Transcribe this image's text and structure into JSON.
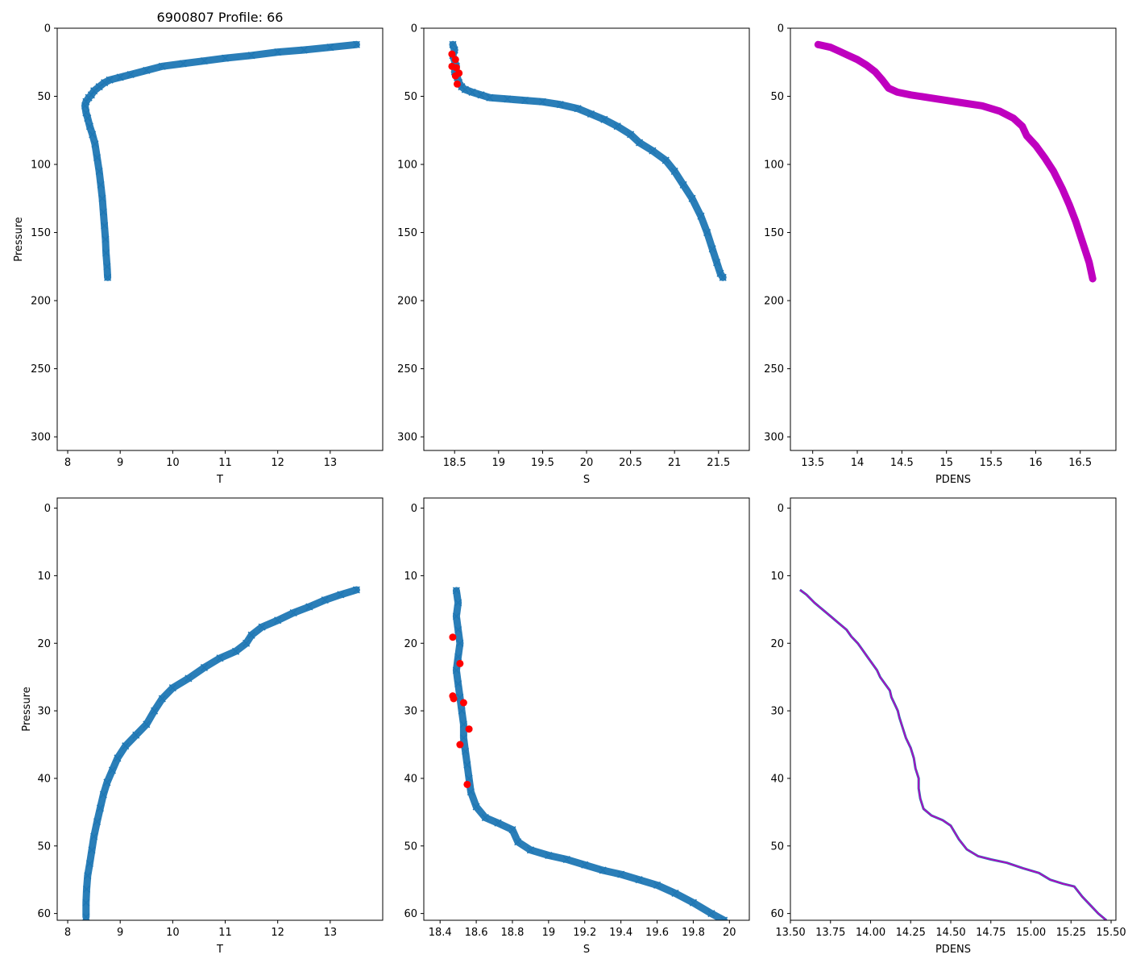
{
  "figure_title": "6900807 Profile: 66",
  "colors": {
    "series": "#1f77b4",
    "flag": "#ff0000",
    "density": "#bf00bf"
  },
  "chart_data": [
    {
      "id": "top-t",
      "type": "scatter",
      "title": "6900807 Profile: 66",
      "xlabel": "T",
      "ylabel": "Pressure",
      "xlim": [
        7.8,
        14.0
      ],
      "ylim": [
        310,
        0
      ],
      "xticks": [
        8,
        9,
        10,
        11,
        12,
        13
      ],
      "yticks": [
        0,
        50,
        100,
        150,
        200,
        250,
        300
      ],
      "marker": "x",
      "series": [
        {
          "name": "T",
          "color": "#1f77b4",
          "points": [
            [
              13.5,
              12
            ],
            [
              13.0,
              14
            ],
            [
              12.5,
              16
            ],
            [
              12.0,
              17.5
            ],
            [
              11.5,
              20
            ],
            [
              11.0,
              22
            ],
            [
              10.6,
              24
            ],
            [
              10.2,
              26
            ],
            [
              9.8,
              28
            ],
            [
              9.5,
              31
            ],
            [
              9.2,
              34
            ],
            [
              9.0,
              36
            ],
            [
              8.8,
              38
            ],
            [
              8.7,
              40
            ],
            [
              8.6,
              43
            ],
            [
              8.5,
              46
            ],
            [
              8.45,
              49
            ],
            [
              8.4,
              51
            ],
            [
              8.35,
              54
            ],
            [
              8.33,
              57
            ],
            [
              8.35,
              62
            ],
            [
              8.38,
              66
            ],
            [
              8.42,
              72
            ],
            [
              8.47,
              78
            ],
            [
              8.52,
              85
            ],
            [
              8.56,
              95
            ],
            [
              8.6,
              105
            ],
            [
              8.63,
              115
            ],
            [
              8.66,
              125
            ],
            [
              8.68,
              135
            ],
            [
              8.7,
              145
            ],
            [
              8.72,
              155
            ],
            [
              8.73,
              165
            ],
            [
              8.75,
              175
            ],
            [
              8.76,
              183
            ]
          ]
        }
      ]
    },
    {
      "id": "top-s",
      "type": "scatter",
      "title": "",
      "xlabel": "S",
      "ylabel": "",
      "xlim": [
        18.15,
        21.85
      ],
      "ylim": [
        310,
        0
      ],
      "xticks": [
        18.5,
        19.0,
        19.5,
        20.0,
        20.5,
        21.0,
        21.5
      ],
      "yticks": [
        0,
        50,
        100,
        150,
        200,
        250,
        300
      ],
      "marker": "x",
      "series": [
        {
          "name": "S",
          "color": "#1f77b4",
          "points": [
            [
              18.48,
              12
            ],
            [
              18.5,
              16
            ],
            [
              18.48,
              20
            ],
            [
              18.5,
              24
            ],
            [
              18.52,
              28
            ],
            [
              18.5,
              32
            ],
            [
              18.53,
              36
            ],
            [
              18.55,
              40
            ],
            [
              18.58,
              43
            ],
            [
              18.62,
              45
            ],
            [
              18.7,
              47
            ],
            [
              18.8,
              49
            ],
            [
              18.9,
              51
            ],
            [
              19.1,
              52
            ],
            [
              19.3,
              53
            ],
            [
              19.5,
              54
            ],
            [
              19.7,
              56
            ],
            [
              19.9,
              59
            ],
            [
              20.05,
              63
            ],
            [
              20.2,
              67
            ],
            [
              20.35,
              72
            ],
            [
              20.5,
              78
            ],
            [
              20.6,
              84
            ],
            [
              20.75,
              90
            ],
            [
              20.9,
              97
            ],
            [
              21.0,
              105
            ],
            [
              21.1,
              115
            ],
            [
              21.2,
              125
            ],
            [
              21.3,
              138
            ],
            [
              21.37,
              150
            ],
            [
              21.43,
              162
            ],
            [
              21.48,
              172
            ],
            [
              21.52,
              180
            ],
            [
              21.55,
              183
            ]
          ]
        },
        {
          "name": "flagged",
          "color": "#ff0000",
          "marker": "o",
          "points": [
            [
              18.47,
              19
            ],
            [
              18.51,
              23
            ],
            [
              18.47,
              28
            ],
            [
              18.52,
              29
            ],
            [
              18.55,
              33
            ],
            [
              18.51,
              35
            ],
            [
              18.53,
              41
            ]
          ]
        }
      ]
    },
    {
      "id": "top-pdens",
      "type": "scatter",
      "title": "",
      "xlabel": "PDENS",
      "ylabel": "",
      "xlim": [
        13.25,
        16.9
      ],
      "ylim": [
        310,
        0
      ],
      "xticks": [
        13.5,
        14.0,
        14.5,
        15.0,
        15.5,
        16.0,
        16.5
      ],
      "yticks": [
        0,
        50,
        100,
        150,
        200,
        250,
        300
      ],
      "marker": "line",
      "series": [
        {
          "name": "PDENS",
          "color": "#bf00bf",
          "points": [
            [
              13.56,
              12
            ],
            [
              13.7,
              14
            ],
            [
              13.8,
              17
            ],
            [
              13.9,
              20
            ],
            [
              14.0,
              23
            ],
            [
              14.1,
              27
            ],
            [
              14.2,
              32
            ],
            [
              14.28,
              38
            ],
            [
              14.35,
              44
            ],
            [
              14.45,
              47
            ],
            [
              14.6,
              49
            ],
            [
              14.8,
              51
            ],
            [
              15.0,
              53
            ],
            [
              15.2,
              55
            ],
            [
              15.4,
              57
            ],
            [
              15.6,
              61
            ],
            [
              15.75,
              66
            ],
            [
              15.85,
              72
            ],
            [
              15.9,
              79
            ],
            [
              16.0,
              86
            ],
            [
              16.1,
              95
            ],
            [
              16.2,
              105
            ],
            [
              16.3,
              118
            ],
            [
              16.38,
              130
            ],
            [
              16.45,
              142
            ],
            [
              16.5,
              152
            ],
            [
              16.55,
              162
            ],
            [
              16.6,
              172
            ],
            [
              16.64,
              184
            ]
          ]
        }
      ]
    },
    {
      "id": "bottom-t",
      "type": "scatter",
      "title": "",
      "xlabel": "T",
      "ylabel": "Pressure",
      "xlim": [
        7.8,
        14.0
      ],
      "ylim": [
        61,
        -1.5
      ],
      "xticks": [
        8,
        9,
        10,
        11,
        12,
        13
      ],
      "yticks": [
        0,
        10,
        20,
        30,
        40,
        50,
        60
      ],
      "marker": "x",
      "series": [
        {
          "name": "T",
          "color": "#1f77b4",
          "points": [
            [
              13.5,
              12.1
            ],
            [
              13.2,
              12.8
            ],
            [
              12.9,
              13.6
            ],
            [
              12.6,
              14.6
            ],
            [
              12.3,
              15.5
            ],
            [
              12.0,
              16.6
            ],
            [
              11.7,
              17.6
            ],
            [
              11.5,
              18.8
            ],
            [
              11.4,
              20.0
            ],
            [
              11.2,
              21.2
            ],
            [
              10.9,
              22.2
            ],
            [
              10.6,
              23.6
            ],
            [
              10.3,
              25.2
            ],
            [
              10.0,
              26.6
            ],
            [
              9.8,
              28.2
            ],
            [
              9.65,
              30.0
            ],
            [
              9.5,
              32.0
            ],
            [
              9.3,
              33.6
            ],
            [
              9.1,
              35.2
            ],
            [
              8.95,
              37.0
            ],
            [
              8.85,
              38.8
            ],
            [
              8.75,
              40.6
            ],
            [
              8.68,
              42.4
            ],
            [
              8.62,
              44.4
            ],
            [
              8.56,
              46.4
            ],
            [
              8.5,
              48.6
            ],
            [
              8.46,
              50.6
            ],
            [
              8.42,
              52.6
            ],
            [
              8.38,
              54.4
            ],
            [
              8.36,
              56.4
            ],
            [
              8.35,
              58.4
            ],
            [
              8.35,
              60.5
            ]
          ]
        }
      ]
    },
    {
      "id": "bottom-s",
      "type": "scatter",
      "title": "",
      "xlabel": "S",
      "ylabel": "",
      "xlim": [
        18.31,
        20.11
      ],
      "ylim": [
        61,
        -1.5
      ],
      "xticks": [
        18.4,
        18.6,
        18.8,
        19.0,
        19.2,
        19.4,
        19.6,
        19.8,
        20.0
      ],
      "yticks": [
        0,
        10,
        20,
        30,
        40,
        50,
        60
      ],
      "marker": "x",
      "series": [
        {
          "name": "S",
          "color": "#1f77b4",
          "points": [
            [
              18.49,
              12.2
            ],
            [
              18.5,
              14.0
            ],
            [
              18.49,
              16.0
            ],
            [
              18.5,
              18.0
            ],
            [
              18.51,
              20.0
            ],
            [
              18.5,
              22.0
            ],
            [
              18.49,
              24.0
            ],
            [
              18.5,
              26.0
            ],
            [
              18.51,
              28.0
            ],
            [
              18.52,
              30.0
            ],
            [
              18.53,
              32.0
            ],
            [
              18.53,
              34.0
            ],
            [
              18.54,
              36.0
            ],
            [
              18.55,
              38.0
            ],
            [
              18.56,
              40.0
            ],
            [
              18.57,
              42.0
            ],
            [
              18.6,
              44.2
            ],
            [
              18.65,
              45.8
            ],
            [
              18.72,
              46.6
            ],
            [
              18.8,
              47.6
            ],
            [
              18.83,
              49.4
            ],
            [
              18.9,
              50.6
            ],
            [
              19.0,
              51.4
            ],
            [
              19.1,
              52.0
            ],
            [
              19.2,
              52.8
            ],
            [
              19.3,
              53.6
            ],
            [
              19.4,
              54.2
            ],
            [
              19.5,
              55.0
            ],
            [
              19.6,
              55.8
            ],
            [
              19.7,
              57.0
            ],
            [
              19.8,
              58.4
            ],
            [
              19.9,
              60.0
            ],
            [
              19.97,
              61.0
            ]
          ]
        },
        {
          "name": "flagged",
          "color": "#ff0000",
          "marker": "o",
          "points": [
            [
              18.47,
              19.1
            ],
            [
              18.51,
              23.0
            ],
            [
              18.47,
              27.8
            ],
            [
              18.475,
              28.2
            ],
            [
              18.53,
              28.8
            ],
            [
              18.56,
              32.7
            ],
            [
              18.51,
              35.0
            ],
            [
              18.55,
              40.9
            ]
          ]
        }
      ]
    },
    {
      "id": "bottom-pdens",
      "type": "line",
      "title": "",
      "xlabel": "PDENS",
      "ylabel": "",
      "xlim": [
        13.5,
        15.53
      ],
      "ylim": [
        61,
        -1.5
      ],
      "xticks": [
        13.5,
        13.75,
        14.0,
        14.25,
        14.5,
        14.75,
        15.0,
        15.25,
        15.5
      ],
      "xtick_labels": [
        "13.50",
        "13.75",
        "14.00",
        "14.25",
        "14.50",
        "14.75",
        "15.00",
        "15.25",
        "15.50"
      ],
      "yticks": [
        0,
        10,
        20,
        30,
        40,
        50,
        60
      ],
      "marker": "line",
      "series": [
        {
          "name": "PDENS",
          "color": "#bf00bf",
          "points": [
            [
              13.56,
              12.1
            ],
            [
              13.6,
              12.8
            ],
            [
              13.65,
              14.0
            ],
            [
              13.7,
              15.0
            ],
            [
              13.75,
              16.0
            ],
            [
              13.8,
              17.0
            ],
            [
              13.85,
              18.0
            ],
            [
              13.88,
              19.0
            ],
            [
              13.92,
              20.0
            ],
            [
              13.95,
              21.0
            ],
            [
              13.98,
              22.0
            ],
            [
              14.01,
              23.0
            ],
            [
              14.04,
              24.0
            ],
            [
              14.06,
              25.0
            ],
            [
              14.09,
              26.0
            ],
            [
              14.12,
              27.0
            ],
            [
              14.13,
              28.0
            ],
            [
              14.15,
              29.0
            ],
            [
              14.17,
              30.0
            ],
            [
              14.18,
              31.0
            ],
            [
              14.2,
              32.5
            ],
            [
              14.22,
              34.0
            ],
            [
              14.25,
              35.5
            ],
            [
              14.27,
              37.0
            ],
            [
              14.28,
              38.5
            ],
            [
              14.3,
              40.0
            ],
            [
              14.3,
              41.5
            ],
            [
              14.31,
              43.0
            ],
            [
              14.33,
              44.5
            ],
            [
              14.38,
              45.5
            ],
            [
              14.45,
              46.2
            ],
            [
              14.5,
              47.0
            ],
            [
              14.55,
              49.0
            ],
            [
              14.6,
              50.5
            ],
            [
              14.67,
              51.5
            ],
            [
              14.75,
              52.0
            ],
            [
              14.85,
              52.5
            ],
            [
              14.95,
              53.3
            ],
            [
              15.05,
              54.0
            ],
            [
              15.12,
              55.0
            ],
            [
              15.2,
              55.6
            ],
            [
              15.27,
              56.0
            ],
            [
              15.32,
              57.5
            ],
            [
              15.38,
              59.0
            ],
            [
              15.42,
              60.0
            ],
            [
              15.47,
              61.0
            ]
          ]
        }
      ]
    }
  ]
}
